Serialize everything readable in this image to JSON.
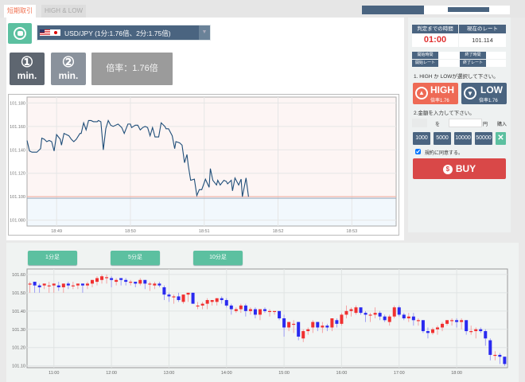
{
  "tabs": [
    {
      "label": "短期取引",
      "active": true
    },
    {
      "label": "HIGH & LOW",
      "active": false
    }
  ],
  "pair": {
    "label": "USD/JPY (1分:1.76倍、2分:1.75倍)",
    "flag_icons": [
      "us-flag-icon",
      "jp-flag-icon"
    ]
  },
  "durations": [
    {
      "num": "①",
      "unit": "min."
    },
    {
      "num": "②",
      "unit": "min."
    }
  ],
  "payout": "倍率：1.76倍",
  "side": {
    "head_time": "判定までの時間",
    "head_rate": "現在のレート",
    "time": "01:00",
    "rate": "101.114",
    "labels": [
      "開始時間",
      "終了時間",
      "開始レート",
      "終了レート"
    ],
    "step1": "1. HIGH か LOWが選択して下さい。",
    "high": {
      "label": "HIGH",
      "rate": "倍率1.76"
    },
    "low": {
      "label": "LOW",
      "rate": "倍率1.76"
    },
    "step2": "2.金額を入力して下さい。",
    "wo": "を",
    "yen": "円",
    "buy_label": "購入",
    "amounts": [
      "1000",
      "5000",
      "10000",
      "50000"
    ],
    "agree": "規約に同意する。",
    "agree_checked": true,
    "buy": "BUY"
  },
  "colors": {
    "navy": "#4a6480",
    "high": "#ee6a55",
    "low": "#4a6480",
    "buy": "#d94848",
    "accent": "#5cc0a0",
    "timer": "#e03030",
    "line": "#1f4e79",
    "up": "#f03030",
    "down": "#2a2af0"
  },
  "candle_buttons": [
    "1分足",
    "5分足",
    "10分足"
  ],
  "chart_data": [
    {
      "type": "line",
      "yticks": [
        "101.180",
        "101.160",
        "101.140",
        "101.120",
        "101.100",
        "101.080"
      ],
      "ylim": [
        101.075,
        101.185
      ],
      "xticks": [
        "18:49",
        "18:50",
        "18:51",
        "18:52",
        "18:53"
      ],
      "xlim": [
        "18:48:36",
        "18:53:36"
      ],
      "strike": 101.1,
      "grid": true,
      "points": [
        [
          "18:48:36",
          101.148
        ],
        [
          "18:48:38",
          101.139
        ],
        [
          "18:48:40",
          101.138
        ],
        [
          "18:48:44",
          101.138
        ],
        [
          "18:48:47",
          101.141
        ],
        [
          "18:48:48",
          101.15
        ],
        [
          "18:48:50",
          101.149
        ],
        [
          "18:48:52",
          101.147
        ],
        [
          "18:48:54",
          101.148
        ],
        [
          "18:48:56",
          101.147
        ],
        [
          "18:48:58",
          101.139
        ],
        [
          "18:49:00",
          101.153
        ],
        [
          "18:49:03",
          101.149
        ],
        [
          "18:49:04",
          101.144
        ],
        [
          "18:49:06",
          101.154
        ],
        [
          "18:49:10",
          101.152
        ],
        [
          "18:49:12",
          101.149
        ],
        [
          "18:49:14",
          101.147
        ],
        [
          "18:49:16",
          101.149
        ],
        [
          "18:49:19",
          101.154
        ],
        [
          "18:49:20",
          101.154
        ],
        [
          "18:49:22",
          101.163
        ],
        [
          "18:49:24",
          101.157
        ],
        [
          "18:49:26",
          101.165
        ],
        [
          "18:49:28",
          101.165
        ],
        [
          "18:49:30",
          101.164
        ],
        [
          "18:49:33",
          101.164
        ],
        [
          "18:49:34",
          101.165
        ],
        [
          "18:49:36",
          101.164
        ],
        [
          "18:49:38",
          101.14
        ],
        [
          "18:49:40",
          101.158
        ],
        [
          "18:49:42",
          101.165
        ],
        [
          "18:49:44",
          101.161
        ],
        [
          "18:49:46",
          101.16
        ],
        [
          "18:49:50",
          101.162
        ],
        [
          "18:49:53",
          101.159
        ],
        [
          "18:49:55",
          101.154
        ],
        [
          "18:49:58",
          101.162
        ],
        [
          "18:50:00",
          101.162
        ],
        [
          "18:50:01",
          101.159
        ],
        [
          "18:50:04",
          101.161
        ],
        [
          "18:50:06",
          101.161
        ],
        [
          "18:50:08",
          101.157
        ],
        [
          "18:50:10",
          101.159
        ],
        [
          "18:50:12",
          101.16
        ],
        [
          "18:50:14",
          101.159
        ],
        [
          "18:50:16",
          101.152
        ],
        [
          "18:50:18",
          101.159
        ],
        [
          "18:50:20",
          101.151
        ],
        [
          "18:50:23",
          101.151
        ],
        [
          "18:50:25",
          101.163
        ],
        [
          "18:50:28",
          101.16
        ],
        [
          "18:50:29",
          101.158
        ],
        [
          "18:50:31",
          101.158
        ],
        [
          "18:50:34",
          101.152
        ],
        [
          "18:50:36",
          101.141
        ],
        [
          "18:50:37",
          101.147
        ],
        [
          "18:50:40",
          101.146
        ],
        [
          "18:50:42",
          101.144
        ],
        [
          "18:50:44",
          101.129
        ],
        [
          "18:50:46",
          101.136
        ],
        [
          "18:50:47",
          101.127
        ],
        [
          "18:50:49",
          101.114
        ],
        [
          "18:50:52",
          101.115
        ],
        [
          "18:50:54",
          101.101
        ],
        [
          "18:50:56",
          101.106
        ],
        [
          "18:50:58",
          101.106
        ],
        [
          "18:51:00",
          101.112
        ],
        [
          "18:51:01",
          101.115
        ],
        [
          "18:51:04",
          101.108
        ],
        [
          "18:51:05",
          101.124
        ],
        [
          "18:51:07",
          101.114
        ],
        [
          "18:51:10",
          101.11
        ],
        [
          "18:51:11",
          101.114
        ],
        [
          "18:51:13",
          101.11
        ],
        [
          "18:51:16",
          101.114
        ],
        [
          "18:51:18",
          101.113
        ],
        [
          "18:51:19",
          101.111
        ],
        [
          "18:51:22",
          101.114
        ],
        [
          "18:51:23",
          101.105
        ],
        [
          "18:51:25",
          101.116
        ],
        [
          "18:51:28",
          101.11
        ],
        [
          "18:51:30",
          101.115
        ],
        [
          "18:51:31",
          101.1
        ],
        [
          "18:51:34",
          101.116
        ],
        [
          "18:51:36",
          101.1
        ]
      ]
    },
    {
      "type": "candlestick",
      "yticks": [
        "101.60",
        "101.50",
        "101.40",
        "101.30",
        "101.20",
        "101.10"
      ],
      "ylim": [
        101.09,
        101.63
      ],
      "xticks": [
        "11:00",
        "12:00",
        "13:00",
        "14:00",
        "15:00",
        "16:00",
        "17:00",
        "18:00"
      ],
      "xlim": [
        "10:32",
        "18:53"
      ],
      "start": "10:35",
      "interval_min": 5,
      "grid": true,
      "ohlc": [
        [
          101.55,
          101.56,
          101.5,
          101.55
        ],
        [
          101.56,
          101.56,
          101.5,
          101.54
        ],
        [
          101.54,
          101.55,
          101.5,
          101.53
        ],
        [
          101.54,
          101.55,
          101.52,
          101.55
        ],
        [
          101.54,
          101.56,
          101.5,
          101.54
        ],
        [
          101.54,
          101.55,
          101.5,
          101.55
        ],
        [
          101.54,
          101.56,
          101.51,
          101.53
        ],
        [
          101.53,
          101.55,
          101.5,
          101.55
        ],
        [
          101.55,
          101.56,
          101.52,
          101.54
        ],
        [
          101.54,
          101.56,
          101.52,
          101.54
        ],
        [
          101.54,
          101.55,
          101.52,
          101.55
        ],
        [
          101.55,
          101.55,
          101.5,
          101.54
        ],
        [
          101.54,
          101.56,
          101.52,
          101.55
        ],
        [
          101.55,
          101.57,
          101.53,
          101.57
        ],
        [
          101.56,
          101.59,
          101.54,
          101.58
        ],
        [
          101.57,
          101.6,
          101.55,
          101.59
        ],
        [
          101.58,
          101.6,
          101.55,
          101.585
        ],
        [
          101.58,
          101.59,
          101.53,
          101.57
        ],
        [
          101.56,
          101.58,
          101.54,
          101.57
        ],
        [
          101.58,
          101.58,
          101.54,
          101.57
        ],
        [
          101.57,
          101.58,
          101.54,
          101.56
        ],
        [
          101.56,
          101.57,
          101.54,
          101.56
        ],
        [
          101.56,
          101.56,
          101.53,
          101.55
        ],
        [
          101.55,
          101.58,
          101.54,
          101.57
        ],
        [
          101.57,
          101.57,
          101.52,
          101.55
        ],
        [
          101.55,
          101.56,
          101.51,
          101.55
        ],
        [
          101.54,
          101.56,
          101.52,
          101.55
        ],
        [
          101.55,
          101.56,
          101.53,
          101.54
        ],
        [
          101.53,
          101.54,
          101.46,
          101.49
        ],
        [
          101.49,
          101.5,
          101.45,
          101.48
        ],
        [
          101.48,
          101.49,
          101.44,
          101.48
        ],
        [
          101.48,
          101.5,
          101.45,
          101.46
        ],
        [
          101.45,
          101.49,
          101.44,
          101.49
        ],
        [
          101.49,
          101.5,
          101.45,
          101.5
        ],
        [
          101.5,
          101.5,
          101.44,
          101.44
        ],
        [
          101.43,
          101.45,
          101.41,
          101.43
        ],
        [
          101.43,
          101.45,
          101.41,
          101.44
        ],
        [
          101.44,
          101.47,
          101.41,
          101.46
        ],
        [
          101.45,
          101.46,
          101.43,
          101.46
        ],
        [
          101.45,
          101.47,
          101.43,
          101.47
        ],
        [
          101.47,
          101.48,
          101.44,
          101.46
        ],
        [
          101.46,
          101.47,
          101.42,
          101.43
        ],
        [
          101.43,
          101.44,
          101.38,
          101.41
        ],
        [
          101.4,
          101.42,
          101.39,
          101.41
        ],
        [
          101.41,
          101.44,
          101.39,
          101.43
        ],
        [
          101.43,
          101.44,
          101.37,
          101.4
        ],
        [
          101.4,
          101.42,
          101.38,
          101.41
        ],
        [
          101.41,
          101.42,
          101.36,
          101.38
        ],
        [
          101.38,
          101.41,
          101.35,
          101.41
        ],
        [
          101.41,
          101.42,
          101.39,
          101.4
        ],
        [
          101.4,
          101.41,
          101.37,
          101.4
        ],
        [
          101.4,
          101.4,
          101.38,
          101.4
        ],
        [
          101.4,
          101.4,
          101.35,
          101.36
        ],
        [
          101.36,
          101.38,
          101.26,
          101.31
        ],
        [
          101.31,
          101.34,
          101.29,
          101.34
        ],
        [
          101.33,
          101.35,
          101.28,
          101.33
        ],
        [
          101.34,
          101.34,
          101.24,
          101.26
        ],
        [
          101.25,
          101.3,
          101.23,
          101.29
        ],
        [
          101.29,
          101.31,
          101.27,
          101.3
        ],
        [
          101.31,
          101.35,
          101.28,
          101.34
        ],
        [
          101.34,
          101.34,
          101.29,
          101.31
        ],
        [
          101.31,
          101.34,
          101.28,
          101.32
        ],
        [
          101.32,
          101.33,
          101.29,
          101.31
        ],
        [
          101.31,
          101.36,
          101.29,
          101.36
        ],
        [
          101.35,
          101.36,
          101.31,
          101.33
        ],
        [
          101.33,
          101.39,
          101.32,
          101.38
        ],
        [
          101.38,
          101.43,
          101.36,
          101.4
        ],
        [
          101.4,
          101.42,
          101.37,
          101.41
        ],
        [
          101.39,
          101.43,
          101.38,
          101.42
        ],
        [
          101.42,
          101.42,
          101.38,
          101.39
        ],
        [
          101.39,
          101.4,
          101.34,
          101.38
        ],
        [
          101.38,
          101.39,
          101.34,
          101.38
        ],
        [
          101.38,
          101.42,
          101.36,
          101.39
        ],
        [
          101.39,
          101.4,
          101.35,
          101.37
        ],
        [
          101.37,
          101.38,
          101.34,
          101.35
        ],
        [
          101.34,
          101.38,
          101.32,
          101.37
        ],
        [
          101.37,
          101.43,
          101.36,
          101.42
        ],
        [
          101.42,
          101.43,
          101.37,
          101.38
        ],
        [
          101.38,
          101.39,
          101.35,
          101.36
        ],
        [
          101.36,
          101.39,
          101.34,
          101.37
        ],
        [
          101.37,
          101.39,
          101.32,
          101.35
        ],
        [
          101.35,
          101.36,
          101.32,
          101.35
        ],
        [
          101.35,
          101.35,
          101.28,
          101.29
        ],
        [
          101.29,
          101.31,
          101.25,
          101.28
        ],
        [
          101.28,
          101.31,
          101.27,
          101.3
        ],
        [
          101.3,
          101.32,
          101.27,
          101.31
        ],
        [
          101.31,
          101.34,
          101.29,
          101.33
        ],
        [
          101.33,
          101.35,
          101.32,
          101.35
        ],
        [
          101.35,
          101.36,
          101.32,
          101.35
        ],
        [
          101.35,
          101.36,
          101.31,
          101.34
        ],
        [
          101.34,
          101.36,
          101.3,
          101.35
        ],
        [
          101.35,
          101.35,
          101.27,
          101.29
        ],
        [
          101.29,
          101.32,
          101.27,
          101.29
        ],
        [
          101.29,
          101.31,
          101.25,
          101.3
        ],
        [
          101.3,
          101.31,
          101.28,
          101.29
        ],
        [
          101.29,
          101.3,
          101.21,
          101.25
        ],
        [
          101.24,
          101.25,
          101.13,
          101.16
        ],
        [
          101.16,
          101.18,
          101.13,
          101.16
        ],
        [
          101.16,
          101.17,
          101.11,
          101.15
        ],
        [
          101.15,
          101.15,
          101.1,
          101.11
        ]
      ]
    }
  ]
}
